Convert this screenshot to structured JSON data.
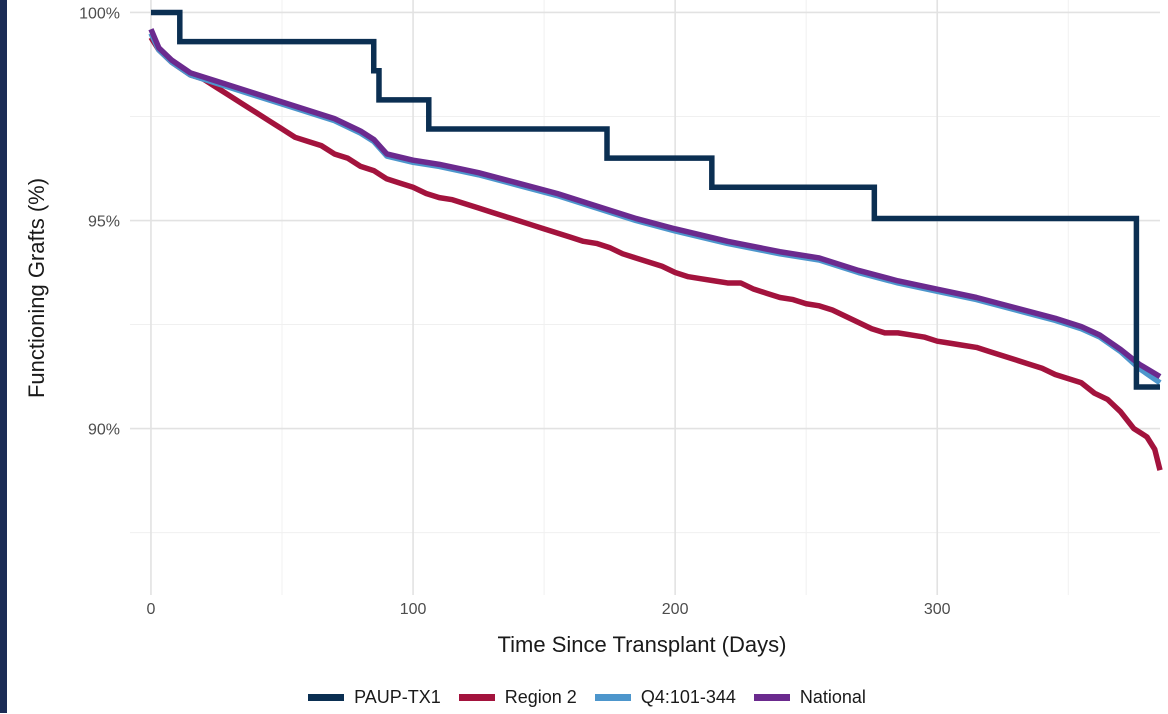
{
  "chart_data": {
    "type": "line",
    "title": "",
    "xlabel": "Time Since Transplant (Days)",
    "ylabel": "Functioning Grafts (%)",
    "xlim": [
      -8,
      385
    ],
    "ylim": [
      86.0,
      100.3
    ],
    "x_ticks": [
      0,
      100,
      200,
      300
    ],
    "x_tick_labels": [
      "0",
      "100",
      "200",
      "300"
    ],
    "y_ticks": [
      90,
      95,
      100
    ],
    "y_tick_labels": [
      "90%",
      "95%",
      "100%"
    ],
    "grid": true,
    "legend_position": "bottom",
    "series": [
      {
        "name": "PAUP-TX1",
        "color": "#0b2f52",
        "step": true,
        "points": [
          [
            0,
            100
          ],
          [
            11,
            100
          ],
          [
            11,
            99.3
          ],
          [
            85,
            99.3
          ],
          [
            85,
            98.6
          ],
          [
            87,
            98.6
          ],
          [
            87,
            97.9
          ],
          [
            106,
            97.9
          ],
          [
            106,
            97.2
          ],
          [
            174,
            97.2
          ],
          [
            174,
            96.5
          ],
          [
            214,
            96.5
          ],
          [
            214,
            95.8
          ],
          [
            276,
            95.8
          ],
          [
            276,
            95.05
          ],
          [
            376,
            95.05
          ],
          [
            376,
            91.0
          ],
          [
            385,
            91.0
          ]
        ]
      },
      {
        "name": "Region 2",
        "color": "#a3133d",
        "step": false,
        "points": [
          [
            0,
            99.4
          ],
          [
            3,
            99.1
          ],
          [
            8,
            98.8
          ],
          [
            15,
            98.5
          ],
          [
            20,
            98.4
          ],
          [
            25,
            98.2
          ],
          [
            30,
            98.0
          ],
          [
            35,
            97.8
          ],
          [
            40,
            97.6
          ],
          [
            45,
            97.4
          ],
          [
            50,
            97.2
          ],
          [
            55,
            97.0
          ],
          [
            60,
            96.9
          ],
          [
            65,
            96.8
          ],
          [
            70,
            96.6
          ],
          [
            75,
            96.5
          ],
          [
            80,
            96.3
          ],
          [
            85,
            96.2
          ],
          [
            90,
            96.0
          ],
          [
            95,
            95.9
          ],
          [
            100,
            95.8
          ],
          [
            105,
            95.65
          ],
          [
            110,
            95.55
          ],
          [
            115,
            95.5
          ],
          [
            120,
            95.4
          ],
          [
            125,
            95.3
          ],
          [
            130,
            95.2
          ],
          [
            135,
            95.1
          ],
          [
            140,
            95.0
          ],
          [
            145,
            94.9
          ],
          [
            150,
            94.8
          ],
          [
            155,
            94.7
          ],
          [
            160,
            94.6
          ],
          [
            165,
            94.5
          ],
          [
            170,
            94.45
          ],
          [
            175,
            94.35
          ],
          [
            180,
            94.2
          ],
          [
            185,
            94.1
          ],
          [
            190,
            94.0
          ],
          [
            195,
            93.9
          ],
          [
            200,
            93.75
          ],
          [
            205,
            93.65
          ],
          [
            210,
            93.6
          ],
          [
            215,
            93.55
          ],
          [
            220,
            93.5
          ],
          [
            225,
            93.5
          ],
          [
            230,
            93.35
          ],
          [
            235,
            93.25
          ],
          [
            240,
            93.15
          ],
          [
            245,
            93.1
          ],
          [
            250,
            93.0
          ],
          [
            255,
            92.95
          ],
          [
            260,
            92.85
          ],
          [
            265,
            92.7
          ],
          [
            270,
            92.55
          ],
          [
            275,
            92.4
          ],
          [
            280,
            92.3
          ],
          [
            285,
            92.3
          ],
          [
            290,
            92.25
          ],
          [
            295,
            92.2
          ],
          [
            300,
            92.1
          ],
          [
            305,
            92.05
          ],
          [
            310,
            92.0
          ],
          [
            315,
            91.95
          ],
          [
            320,
            91.85
          ],
          [
            325,
            91.75
          ],
          [
            330,
            91.65
          ],
          [
            335,
            91.55
          ],
          [
            340,
            91.45
          ],
          [
            345,
            91.3
          ],
          [
            350,
            91.2
          ],
          [
            355,
            91.1
          ],
          [
            360,
            90.85
          ],
          [
            365,
            90.7
          ],
          [
            370,
            90.4
          ],
          [
            375,
            90.0
          ],
          [
            380,
            89.8
          ],
          [
            383,
            89.5
          ],
          [
            385,
            89.0
          ]
        ]
      },
      {
        "name": "Q4:101-344",
        "color": "#4d96cc",
        "step": false,
        "points": [
          [
            0,
            99.5
          ],
          [
            3,
            99.1
          ],
          [
            8,
            98.8
          ],
          [
            15,
            98.5
          ],
          [
            25,
            98.3
          ],
          [
            40,
            98.0
          ],
          [
            55,
            97.7
          ],
          [
            70,
            97.4
          ],
          [
            80,
            97.1
          ],
          [
            85,
            96.9
          ],
          [
            90,
            96.55
          ],
          [
            100,
            96.4
          ],
          [
            110,
            96.3
          ],
          [
            125,
            96.1
          ],
          [
            140,
            95.85
          ],
          [
            155,
            95.6
          ],
          [
            170,
            95.3
          ],
          [
            185,
            95.0
          ],
          [
            200,
            94.75
          ],
          [
            220,
            94.45
          ],
          [
            240,
            94.2
          ],
          [
            255,
            94.05
          ],
          [
            270,
            93.75
          ],
          [
            285,
            93.5
          ],
          [
            300,
            93.3
          ],
          [
            315,
            93.1
          ],
          [
            330,
            92.85
          ],
          [
            345,
            92.6
          ],
          [
            355,
            92.4
          ],
          [
            362,
            92.2
          ],
          [
            370,
            91.85
          ],
          [
            377,
            91.45
          ],
          [
            385,
            91.1
          ]
        ]
      },
      {
        "name": "National",
        "color": "#6b2a8e",
        "step": false,
        "points": [
          [
            0,
            99.6
          ],
          [
            3,
            99.15
          ],
          [
            8,
            98.85
          ],
          [
            15,
            98.55
          ],
          [
            25,
            98.35
          ],
          [
            40,
            98.05
          ],
          [
            55,
            97.75
          ],
          [
            70,
            97.45
          ],
          [
            80,
            97.15
          ],
          [
            85,
            96.95
          ],
          [
            90,
            96.6
          ],
          [
            100,
            96.45
          ],
          [
            110,
            96.35
          ],
          [
            125,
            96.15
          ],
          [
            140,
            95.9
          ],
          [
            155,
            95.65
          ],
          [
            170,
            95.35
          ],
          [
            185,
            95.05
          ],
          [
            200,
            94.8
          ],
          [
            220,
            94.5
          ],
          [
            240,
            94.25
          ],
          [
            255,
            94.1
          ],
          [
            270,
            93.8
          ],
          [
            285,
            93.55
          ],
          [
            300,
            93.35
          ],
          [
            315,
            93.15
          ],
          [
            330,
            92.9
          ],
          [
            345,
            92.65
          ],
          [
            355,
            92.45
          ],
          [
            362,
            92.25
          ],
          [
            370,
            91.9
          ],
          [
            377,
            91.55
          ],
          [
            385,
            91.25
          ]
        ]
      }
    ]
  }
}
